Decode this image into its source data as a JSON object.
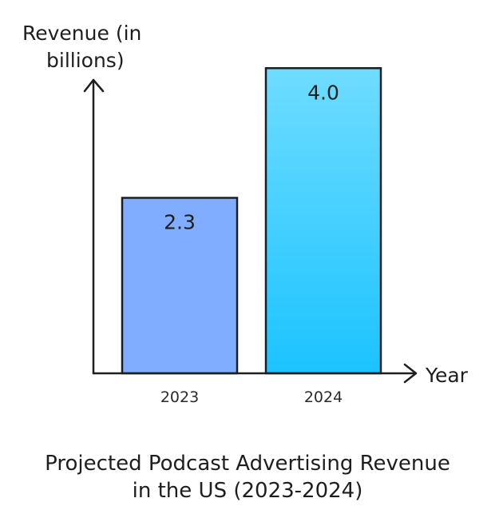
{
  "chart_data": {
    "type": "bar",
    "title_lines": [
      "Projected Podcast Advertising Revenue",
      "in the US (2023-2024)"
    ],
    "ylabel_lines": [
      "Revenue (in",
      "billions)"
    ],
    "xlabel": "Year",
    "categories": [
      "2023",
      "2024"
    ],
    "values": [
      2.3,
      4.0
    ],
    "value_labels": [
      "2.3",
      "4.0"
    ],
    "ylim": [
      0,
      4.6
    ],
    "grid": false,
    "legend": "none",
    "colors": {
      "bar_2023": "#80adff",
      "bar_2024_top": "#6fdcff",
      "bar_2024_bottom": "#1cc3ff",
      "stroke": "#1e1e1e"
    }
  }
}
